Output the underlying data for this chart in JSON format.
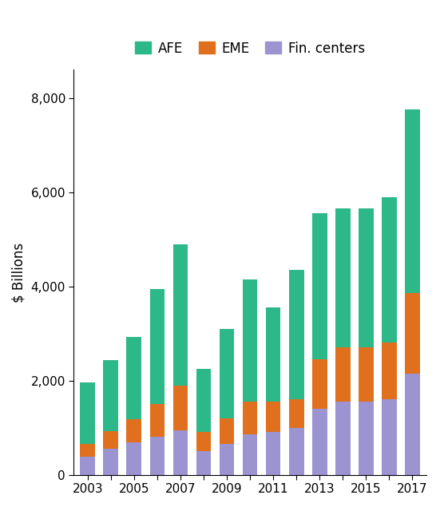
{
  "years": [
    2003,
    2004,
    2005,
    2006,
    2007,
    2008,
    2009,
    2010,
    2011,
    2012,
    2013,
    2014,
    2015,
    2016,
    2017
  ],
  "AFE": [
    1300,
    1500,
    1750,
    2450,
    3000,
    1350,
    1900,
    2600,
    2000,
    2750,
    3100,
    2950,
    2950,
    3100,
    3900
  ],
  "EME": [
    280,
    380,
    500,
    700,
    950,
    400,
    550,
    700,
    650,
    600,
    1050,
    1150,
    1150,
    1200,
    1700
  ],
  "Fin_centers": [
    380,
    550,
    680,
    800,
    950,
    500,
    650,
    850,
    900,
    1000,
    1400,
    1550,
    1550,
    1600,
    2150
  ],
  "colors": {
    "AFE": "#2db88a",
    "EME": "#e0701e",
    "Fin_centers": "#9b94d1"
  },
  "ylabel": "$ Billions",
  "ylim": [
    0,
    8600
  ],
  "yticks": [
    0,
    2000,
    4000,
    6000,
    8000
  ],
  "bar_width": 0.65,
  "background_color": "#ffffff"
}
